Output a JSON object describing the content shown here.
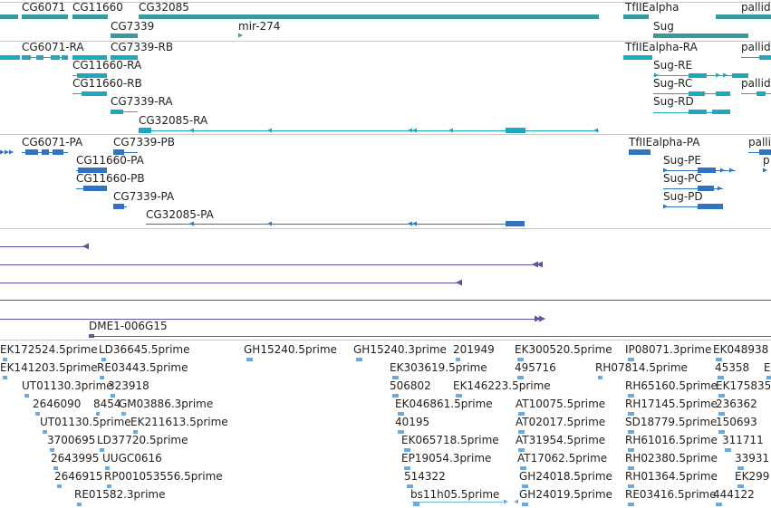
{
  "colors": {
    "gene": "#3a9a9a",
    "transcript": "#1fa6c0",
    "cds": "#2f73c7",
    "alignment": "#6a4fa8",
    "est": "#6aaadc",
    "separator": "#c8c8c8"
  },
  "genes": [
    {
      "label": "CG6071"
    },
    {
      "label": "CG11660"
    },
    {
      "label": "CG32085"
    },
    {
      "label": "CG7339"
    },
    {
      "label": "mir-274"
    },
    {
      "label": "TfIIEalpha"
    },
    {
      "label": "Sug"
    },
    {
      "label": "pallid"
    }
  ],
  "transcripts": [
    {
      "label": "CG6071-RA"
    },
    {
      "label": "CG7339-RB"
    },
    {
      "label": "CG11660-RA"
    },
    {
      "label": "CG11660-RB"
    },
    {
      "label": "CG7339-RA"
    },
    {
      "label": "CG32085-RA"
    },
    {
      "label": "TfIIEalpha-RA"
    },
    {
      "label": "pallid"
    },
    {
      "label": "Sug-RE"
    },
    {
      "label": "Sug-RC"
    },
    {
      "label": "pallid"
    },
    {
      "label": "Sug-RD"
    }
  ],
  "proteins": [
    {
      "label": "CG6071-PA"
    },
    {
      "label": "CG7339-PB"
    },
    {
      "label": "CG11660-PA"
    },
    {
      "label": "CG11660-PB"
    },
    {
      "label": "CG7339-PA"
    },
    {
      "label": "CG32085-PA"
    },
    {
      "label": "TfIIEalpha-PA"
    },
    {
      "label": "pallid"
    },
    {
      "label": "Sug-PE"
    },
    {
      "label": "p"
    },
    {
      "label": "Sug-PC"
    },
    {
      "label": "Sug-PD"
    }
  ],
  "alignments": [
    {
      "label": "DME1-006G15"
    }
  ],
  "ests": [
    {
      "label": "EK172524.5prime"
    },
    {
      "label": "LD36645.5prime"
    },
    {
      "label": "GH15240.5prime"
    },
    {
      "label": "GH15240.3prime"
    },
    {
      "label": "201949"
    },
    {
      "label": "EK300520.5prime"
    },
    {
      "label": "IP08071.3prime"
    },
    {
      "label": "EK048938"
    },
    {
      "label": "EK141203.5prime"
    },
    {
      "label": "RE03443.5prime"
    },
    {
      "label": "EK303619.5prime"
    },
    {
      "label": "495716"
    },
    {
      "label": "RH07814.5prime"
    },
    {
      "label": "45358"
    },
    {
      "label": "E"
    },
    {
      "label": "UT01130.3prime"
    },
    {
      "label": "323918"
    },
    {
      "label": "506802"
    },
    {
      "label": "EK146223.5prime"
    },
    {
      "label": "RH65160.5prime"
    },
    {
      "label": "EK175835"
    },
    {
      "label": "2646090"
    },
    {
      "label": "8454"
    },
    {
      "label": "GM03886.3prime"
    },
    {
      "label": "EK046861.5prime"
    },
    {
      "label": "AT10075.5prime"
    },
    {
      "label": "RH17145.5prime"
    },
    {
      "label": "236362"
    },
    {
      "label": "UT01130.5prime"
    },
    {
      "label": "EK211613.5prime"
    },
    {
      "label": "40195"
    },
    {
      "label": "AT02017.5prime"
    },
    {
      "label": "SD18779.5prime"
    },
    {
      "label": "150693"
    },
    {
      "label": "3700695"
    },
    {
      "label": "LD37720.5prime"
    },
    {
      "label": "EK065718.5prime"
    },
    {
      "label": "AT31954.5prime"
    },
    {
      "label": "RH61016.5prime"
    },
    {
      "label": "311711"
    },
    {
      "label": "2643995"
    },
    {
      "label": "UUGC0616"
    },
    {
      "label": "EP19054.3prime"
    },
    {
      "label": "AT17062.5prime"
    },
    {
      "label": "RH02380.5prime"
    },
    {
      "label": "33931"
    },
    {
      "label": "2646915"
    },
    {
      "label": "RP001053556.5prime"
    },
    {
      "label": "514322"
    },
    {
      "label": "GH24018.5prime"
    },
    {
      "label": "RH01364.5prime"
    },
    {
      "label": "EK299"
    },
    {
      "label": "RE01582.3prime"
    },
    {
      "label": "bs11h05.5prime"
    },
    {
      "label": "GH24019.5prime"
    },
    {
      "label": "RE03416.5prime"
    },
    {
      "label": "444122"
    }
  ]
}
